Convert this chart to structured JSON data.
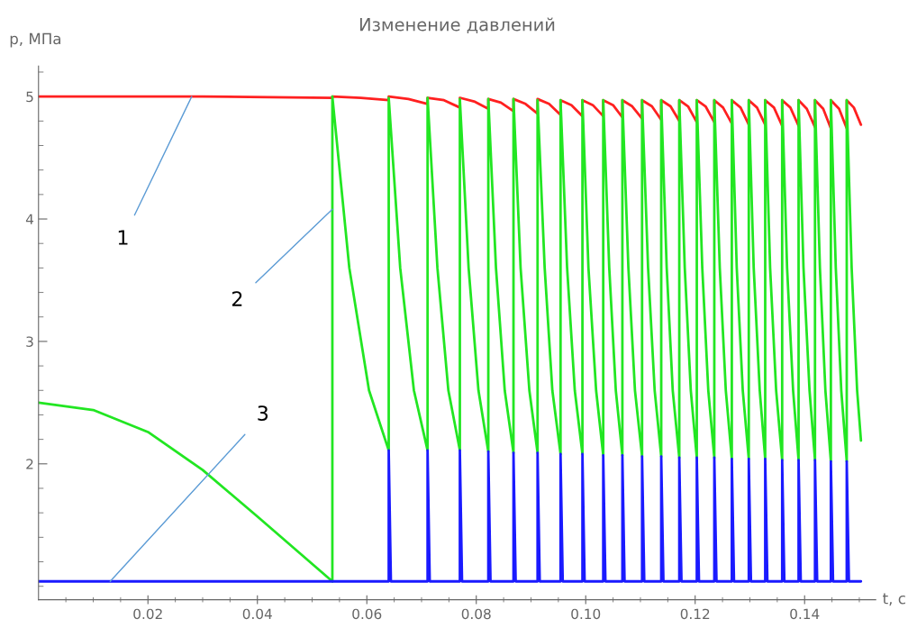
{
  "chart_data": {
    "type": "line",
    "title": "Изменение давлений",
    "xlabel": "t, c",
    "ylabel": "p, МПа",
    "xlim": [
      0,
      0.153
    ],
    "ylim": [
      0.89,
      5.25
    ],
    "xticks": [
      {
        "value": 0.005,
        "label": null
      },
      {
        "value": 0.01,
        "label": null
      },
      {
        "value": 0.015,
        "label": null
      },
      {
        "value": 0.02,
        "label": "0.02"
      },
      {
        "value": 0.025,
        "label": null
      },
      {
        "value": 0.03,
        "label": null
      },
      {
        "value": 0.035,
        "label": null
      },
      {
        "value": 0.04,
        "label": "0.04"
      },
      {
        "value": 0.045,
        "label": null
      },
      {
        "value": 0.05,
        "label": null
      },
      {
        "value": 0.055,
        "label": null
      },
      {
        "value": 0.06,
        "label": "0.06"
      },
      {
        "value": 0.065,
        "label": null
      },
      {
        "value": 0.07,
        "label": null
      },
      {
        "value": 0.075,
        "label": null
      },
      {
        "value": 0.08,
        "label": "0.08"
      },
      {
        "value": 0.085,
        "label": null
      },
      {
        "value": 0.09,
        "label": null
      },
      {
        "value": 0.095,
        "label": null
      },
      {
        "value": 0.1,
        "label": "0.10"
      },
      {
        "value": 0.105,
        "label": null
      },
      {
        "value": 0.11,
        "label": null
      },
      {
        "value": 0.115,
        "label": null
      },
      {
        "value": 0.12,
        "label": "0.12"
      },
      {
        "value": 0.125,
        "label": null
      },
      {
        "value": 0.13,
        "label": null
      },
      {
        "value": 0.135,
        "label": null
      },
      {
        "value": 0.14,
        "label": "0.14"
      },
      {
        "value": 0.145,
        "label": null
      },
      {
        "value": 0.15,
        "label": null
      }
    ],
    "yticks": [
      {
        "value": 1.0,
        "label": null
      },
      {
        "value": 1.2,
        "label": null
      },
      {
        "value": 1.4,
        "label": null
      },
      {
        "value": 1.6,
        "label": null
      },
      {
        "value": 1.8,
        "label": null
      },
      2,
      {
        "value": 2.2,
        "label": null
      },
      {
        "value": 2.4,
        "label": null
      },
      {
        "value": 2.6,
        "label": null
      },
      {
        "value": 2.8,
        "label": null
      },
      3,
      {
        "value": 3.2,
        "label": null
      },
      {
        "value": 3.4,
        "label": null
      },
      {
        "value": 3.6,
        "label": null
      },
      {
        "value": 3.8,
        "label": null
      },
      4,
      {
        "value": 4.2,
        "label": null
      },
      {
        "value": 4.4,
        "label": null
      },
      {
        "value": 4.6,
        "label": null
      },
      {
        "value": 4.8,
        "label": null
      },
      5,
      {
        "value": 5.2,
        "label": null
      }
    ],
    "grid": false,
    "marker": "none",
    "line_style": "solid",
    "series": [
      {
        "color": "#ff2020",
        "x": [
          0,
          0.03,
          0.0537,
          0.0537,
          0.0589,
          0.064,
          0.064,
          0.0676,
          0.0711,
          0.0711,
          0.0741,
          0.077,
          0.077,
          0.0796,
          0.0822,
          0.0822,
          0.0845,
          0.0868,
          0.0868,
          0.089,
          0.0912,
          0.0912,
          0.0933,
          0.0954,
          0.0954,
          0.0974,
          0.0994,
          0.0994,
          0.1013,
          0.1032,
          0.1032,
          0.105,
          0.1067,
          0.1067,
          0.1085,
          0.1103,
          0.1103,
          0.1121,
          0.1138,
          0.1138,
          0.1155,
          0.1171,
          0.1171,
          0.1187,
          0.1203,
          0.1203,
          0.1219,
          0.1235,
          0.1235,
          0.1251,
          0.1267,
          0.1267,
          0.1283,
          0.1298,
          0.1298,
          0.1313,
          0.1328,
          0.1328,
          0.1344,
          0.1359,
          0.1359,
          0.1374,
          0.1389,
          0.1389,
          0.1404,
          0.1419,
          0.1419,
          0.1434,
          0.1448,
          0.1448,
          0.1463,
          0.1477,
          0.1477,
          0.149,
          0.1503
        ],
        "values": [
          5.0,
          5.0,
          4.99,
          5.0,
          4.99,
          4.97,
          5.0,
          4.98,
          4.94,
          4.99,
          4.97,
          4.91,
          4.99,
          4.96,
          4.9,
          4.98,
          4.95,
          4.88,
          4.98,
          4.94,
          4.86,
          4.98,
          4.94,
          4.85,
          4.97,
          4.93,
          4.84,
          4.97,
          4.93,
          4.84,
          4.97,
          4.93,
          4.83,
          4.97,
          4.92,
          4.82,
          4.97,
          4.92,
          4.81,
          4.97,
          4.92,
          4.8,
          4.97,
          4.92,
          4.79,
          4.97,
          4.92,
          4.79,
          4.97,
          4.91,
          4.78,
          4.97,
          4.91,
          4.77,
          4.97,
          4.91,
          4.77,
          4.97,
          4.91,
          4.76,
          4.97,
          4.91,
          4.76,
          4.97,
          4.9,
          4.75,
          4.97,
          4.9,
          4.74,
          4.97,
          4.9,
          4.74,
          4.97,
          4.91,
          4.77
        ]
      },
      {
        "color": "#22e622",
        "x": [
          0,
          0.01,
          0.02,
          0.03,
          0.04,
          0.0537,
          0.0537,
          0.0568,
          0.0604,
          0.064,
          0.064,
          0.0661,
          0.0686,
          0.0711,
          0.0711,
          0.0729,
          0.0749,
          0.077,
          0.077,
          0.0786,
          0.0804,
          0.0822,
          0.0822,
          0.0836,
          0.0852,
          0.0868,
          0.0868,
          0.0881,
          0.0897,
          0.0912,
          0.0912,
          0.0925,
          0.0939,
          0.0954,
          0.0954,
          0.0966,
          0.098,
          0.0994,
          0.0994,
          0.1005,
          0.1019,
          0.1032,
          0.1032,
          0.1043,
          0.1055,
          0.1067,
          0.1067,
          0.1078,
          0.109,
          0.1103,
          0.1103,
          0.1114,
          0.1126,
          0.1138,
          0.1138,
          0.1148,
          0.1159,
          0.1171,
          0.1171,
          0.1181,
          0.1192,
          0.1203,
          0.1203,
          0.1213,
          0.1224,
          0.1235,
          0.1235,
          0.1245,
          0.1256,
          0.1267,
          0.1267,
          0.1276,
          0.1287,
          0.1298,
          0.1298,
          0.1307,
          0.1318,
          0.1328,
          0.1328,
          0.1337,
          0.1348,
          0.1359,
          0.1359,
          0.1368,
          0.1379,
          0.1389,
          0.1389,
          0.1398,
          0.1409,
          0.1419,
          0.1419,
          0.1428,
          0.1438,
          0.1448,
          0.1448,
          0.1457,
          0.1467,
          0.1477,
          0.1477,
          0.1486,
          0.1496,
          0.1503
        ],
        "values": [
          2.5,
          2.44,
          2.26,
          1.95,
          1.57,
          1.04,
          5.0,
          3.6,
          2.6,
          2.11,
          4.99,
          3.6,
          2.6,
          2.11,
          4.99,
          3.6,
          2.6,
          2.11,
          4.98,
          3.6,
          2.6,
          2.1,
          4.98,
          3.6,
          2.6,
          2.09,
          4.98,
          3.6,
          2.6,
          2.09,
          4.97,
          3.6,
          2.6,
          2.08,
          4.97,
          3.6,
          2.6,
          2.08,
          4.97,
          3.6,
          2.6,
          2.07,
          4.97,
          3.6,
          2.6,
          2.07,
          4.97,
          3.6,
          2.6,
          2.06,
          4.97,
          3.6,
          2.6,
          2.06,
          4.97,
          3.6,
          2.6,
          2.05,
          4.97,
          3.6,
          2.6,
          2.05,
          4.97,
          3.6,
          2.6,
          2.05,
          4.97,
          3.6,
          2.6,
          2.04,
          4.97,
          3.6,
          2.6,
          2.04,
          4.97,
          3.6,
          2.6,
          2.04,
          4.97,
          3.6,
          2.6,
          2.03,
          4.97,
          3.6,
          2.6,
          2.03,
          4.97,
          3.6,
          2.6,
          2.03,
          4.97,
          3.6,
          2.6,
          2.02,
          4.97,
          3.6,
          2.6,
          2.02,
          4.97,
          3.6,
          2.6,
          2.19
        ]
      },
      {
        "color": "#1a1aff",
        "x": [
          0,
          0.064,
          0.064,
          0.0644,
          0.0711,
          0.0711,
          0.0715,
          0.077,
          0.077,
          0.0774,
          0.0822,
          0.0822,
          0.0826,
          0.0868,
          0.0868,
          0.0872,
          0.0912,
          0.0912,
          0.0916,
          0.0954,
          0.0954,
          0.0958,
          0.0994,
          0.0994,
          0.0998,
          0.1032,
          0.1032,
          0.1036,
          0.1067,
          0.1067,
          0.1071,
          0.1103,
          0.1103,
          0.1107,
          0.1138,
          0.1138,
          0.1142,
          0.1171,
          0.1171,
          0.1175,
          0.1203,
          0.1203,
          0.1207,
          0.1235,
          0.1235,
          0.1239,
          0.1267,
          0.1267,
          0.1271,
          0.1298,
          0.1298,
          0.1302,
          0.1328,
          0.1328,
          0.1332,
          0.1359,
          0.1359,
          0.1363,
          0.1389,
          0.1389,
          0.1393,
          0.1419,
          0.1419,
          0.1423,
          0.1448,
          0.1448,
          0.1452,
          0.1477,
          0.1477,
          0.1481,
          0.1503
        ],
        "values": [
          1.04,
          1.04,
          2.11,
          1.04,
          1.04,
          2.11,
          1.04,
          1.04,
          2.11,
          1.04,
          1.04,
          2.1,
          1.04,
          1.04,
          2.09,
          1.04,
          1.04,
          2.09,
          1.04,
          1.04,
          2.08,
          1.04,
          1.04,
          2.08,
          1.04,
          1.04,
          2.07,
          1.04,
          1.04,
          2.07,
          1.04,
          1.04,
          2.06,
          1.04,
          1.04,
          2.06,
          1.04,
          1.04,
          2.05,
          1.04,
          1.04,
          2.05,
          1.04,
          1.04,
          2.05,
          1.04,
          1.04,
          2.04,
          1.04,
          1.04,
          2.04,
          1.04,
          1.04,
          2.04,
          1.04,
          1.04,
          2.03,
          1.04,
          1.04,
          2.03,
          1.04,
          1.04,
          2.03,
          1.04,
          1.04,
          2.02,
          1.04,
          1.04,
          2.02,
          1.04,
          1.04
        ]
      }
    ],
    "annotations": [
      {
        "text": "1",
        "x": 0.028,
        "y": 5.0
      },
      {
        "text": "2",
        "x": 0.0537,
        "y": 4.08
      },
      {
        "text": "3",
        "x": 0.0131,
        "y": 1.04
      }
    ]
  }
}
